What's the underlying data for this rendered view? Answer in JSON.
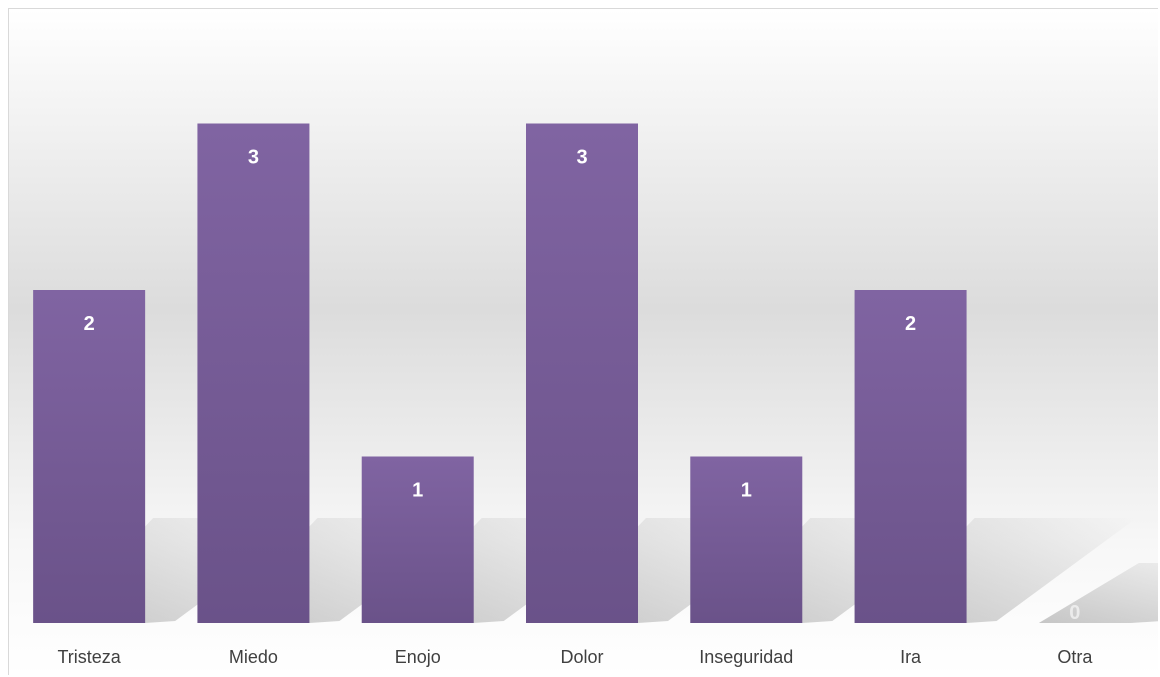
{
  "chart_data": {
    "type": "bar",
    "categories": [
      "Tristeza",
      "Miedo",
      "Enojo",
      "Dolor",
      "Inseguridad",
      "Ira",
      "Otra"
    ],
    "values": [
      2,
      3,
      1,
      3,
      1,
      2,
      0
    ],
    "title": "",
    "xlabel": "",
    "ylabel": "",
    "ylim": [
      0,
      3.6
    ],
    "grid": false,
    "legend": "none",
    "data_labels": true,
    "colors": {
      "bar_top": "#8064a2",
      "bar_bottom": "#6a5289",
      "label_text": "#ffffff",
      "category_text": "#404040",
      "shadow": "#bfbfbf"
    }
  }
}
